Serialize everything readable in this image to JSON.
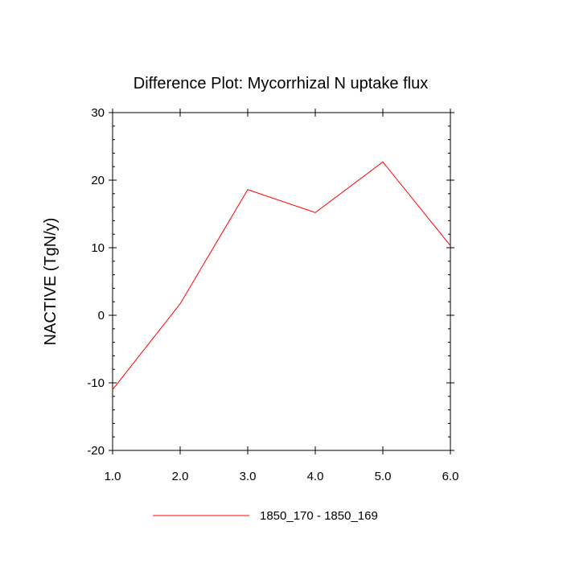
{
  "chart_data": {
    "type": "line",
    "title": "Difference Plot: Mycorrhizal N uptake flux",
    "xlabel": "",
    "ylabel": "NACTIVE  (TgN/y)",
    "xlim": [
      1.0,
      6.0
    ],
    "ylim": [
      -20,
      30
    ],
    "x_ticks": [
      "1.0",
      "2.0",
      "3.0",
      "4.0",
      "5.0",
      "6.0"
    ],
    "y_ticks": [
      "-20",
      "-10",
      "0",
      "10",
      "20",
      "30"
    ],
    "grid": false,
    "legend_position": "bottom",
    "series": [
      {
        "name": "1850_170 - 1850_169",
        "color": "#ff0000",
        "x": [
          1.0,
          2.0,
          3.0,
          4.0,
          5.0,
          6.0
        ],
        "y": [
          -11.0,
          1.7,
          18.6,
          15.2,
          22.7,
          10.3
        ]
      }
    ]
  }
}
